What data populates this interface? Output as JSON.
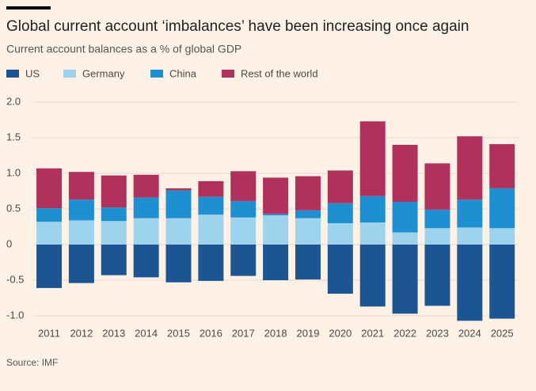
{
  "chart_data": {
    "type": "stacked-bar",
    "title": "Global current account ‘imbalances’ have been increasing once again",
    "subtitle": "Current account balances as a % of global GDP",
    "source": "Source: IMF",
    "categories": [
      "2011",
      "2012",
      "2013",
      "2014",
      "2015",
      "2016",
      "2017",
      "2018",
      "2019",
      "2020",
      "2021",
      "2022",
      "2023",
      "2024",
      "2025"
    ],
    "series": [
      {
        "name": "US",
        "color": "#1d5592",
        "values": [
          -0.61,
          -0.54,
          -0.43,
          -0.46,
          -0.53,
          -0.51,
          -0.44,
          -0.5,
          -0.49,
          -0.69,
          -0.87,
          -0.97,
          -0.86,
          -1.07,
          -1.04
        ]
      },
      {
        "name": "Germany",
        "color": "#9dd3ec",
        "values": [
          0.32,
          0.34,
          0.33,
          0.37,
          0.37,
          0.42,
          0.38,
          0.41,
          0.37,
          0.3,
          0.31,
          0.17,
          0.23,
          0.24,
          0.23
        ]
      },
      {
        "name": "China",
        "color": "#1e8fd0",
        "values": [
          0.19,
          0.29,
          0.19,
          0.29,
          0.39,
          0.25,
          0.23,
          0.02,
          0.11,
          0.28,
          0.37,
          0.43,
          0.26,
          0.39,
          0.56
        ]
      },
      {
        "name": "Rest of the world",
        "color": "#b0325c",
        "values": [
          0.56,
          0.39,
          0.45,
          0.32,
          0.03,
          0.22,
          0.42,
          0.51,
          0.48,
          0.46,
          1.05,
          0.8,
          0.65,
          0.89,
          0.62
        ]
      }
    ],
    "ylim": [
      -1.1,
      2.0
    ],
    "yticks": [
      {
        "value": 2.0,
        "label": "2.0"
      },
      1.5,
      {
        "value": 1.0,
        "label": "1.0"
      },
      0.5,
      0,
      -0.5,
      {
        "value": -1.0,
        "label": "-1.0"
      }
    ],
    "grid": true
  }
}
